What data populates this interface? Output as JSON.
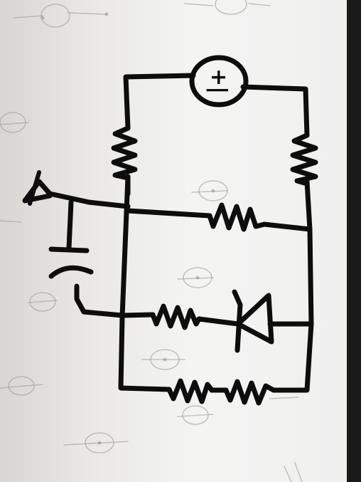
{
  "diagram": {
    "source_label": "+|",
    "ink_color": "#0d0d0d",
    "paper_color": "#f0f0ef",
    "components": [
      {
        "name": "voltage-source",
        "icon": "circle-source-icon"
      },
      {
        "name": "resistor-left-top",
        "icon": "resistor-zigzag-icon"
      },
      {
        "name": "resistor-right-top",
        "icon": "resistor-zigzag-icon"
      },
      {
        "name": "resistor-middle-rung",
        "icon": "resistor-zigzag-icon"
      },
      {
        "name": "resistor-lower-rung",
        "icon": "resistor-zigzag-icon"
      },
      {
        "name": "diode",
        "icon": "diode-icon"
      },
      {
        "name": "resistor-bottom-1",
        "icon": "resistor-zigzag-icon"
      },
      {
        "name": "resistor-bottom-2",
        "icon": "resistor-zigzag-icon"
      },
      {
        "name": "capacitor",
        "icon": "capacitor-icon"
      },
      {
        "name": "ground",
        "icon": "ground-icon"
      }
    ]
  }
}
